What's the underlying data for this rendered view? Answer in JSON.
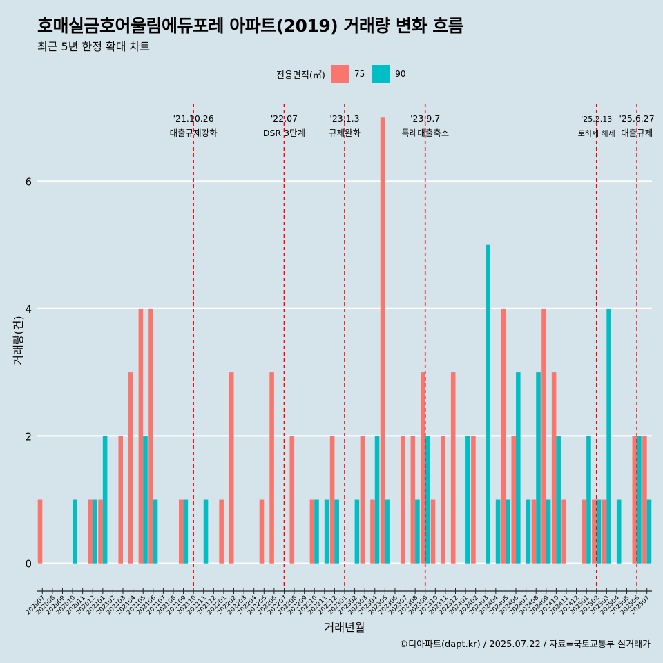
{
  "title": "호매실금호어울림에듀포레 아파트(2019) 거래량 변화 흐름",
  "subtitle": "최근 5년 한정 확대 차트",
  "caption": "©디아파트(dapt.kr) / 2025.07.22 / 자료=국토교통부 실거래가",
  "legend": {
    "title": "전용면적(㎡)",
    "items": [
      {
        "label": "75",
        "color": "#F8766D"
      },
      {
        "label": "90",
        "color": "#00BFC4"
      }
    ]
  },
  "chart_data": {
    "type": "bar",
    "title": "호매실금호어울림에듀포레 아파트(2019) 거래량 변화 흐름",
    "xlabel": "거래년월",
    "ylabel": "거래량(건)",
    "ylim": [
      -0.35,
      7.35
    ],
    "yticks": [
      0,
      2,
      4,
      6
    ],
    "categories": [
      "202007",
      "202008",
      "202009",
      "202010",
      "202011",
      "202012",
      "202101",
      "202102",
      "202103",
      "202104",
      "202105",
      "202106",
      "202107",
      "202108",
      "202109",
      "202110",
      "202111",
      "202112",
      "202201",
      "202202",
      "202203",
      "202204",
      "202205",
      "202206",
      "202207",
      "202208",
      "202209",
      "202210",
      "202211",
      "202212",
      "202301",
      "202302",
      "202303",
      "202304",
      "202305",
      "202306",
      "202307",
      "202308",
      "202309",
      "202310",
      "202311",
      "202312",
      "202401",
      "202402",
      "202403",
      "202404",
      "202405",
      "202406",
      "202407",
      "202408",
      "202409",
      "202410",
      "202411",
      "202412",
      "202501",
      "202502",
      "202503",
      "202504",
      "202505",
      "202506",
      "202507"
    ],
    "series": [
      {
        "name": "75",
        "color": "#F8766D",
        "values": [
          1,
          0,
          0,
          0,
          0,
          1,
          1,
          0,
          2,
          3,
          4,
          4,
          0,
          0,
          1,
          0,
          0,
          0,
          1,
          3,
          0,
          0,
          1,
          3,
          0,
          2,
          0,
          1,
          0,
          2,
          0,
          0,
          2,
          1,
          7,
          0,
          2,
          2,
          3,
          1,
          2,
          3,
          0,
          2,
          0,
          0,
          4,
          2,
          0,
          1,
          4,
          3,
          1,
          0,
          1,
          1,
          1,
          0,
          0,
          2,
          2
        ]
      },
      {
        "name": "90",
        "color": "#00BFC4",
        "values": [
          0,
          0,
          0,
          1,
          0,
          1,
          2,
          0,
          0,
          0,
          2,
          1,
          0,
          0,
          1,
          0,
          1,
          0,
          0,
          0,
          0,
          0,
          0,
          0,
          0,
          0,
          0,
          1,
          1,
          1,
          0,
          1,
          0,
          2,
          1,
          0,
          0,
          1,
          2,
          0,
          0,
          0,
          2,
          0,
          5,
          1,
          1,
          3,
          1,
          3,
          1,
          2,
          0,
          0,
          2,
          1,
          4,
          1,
          0,
          2,
          1
        ]
      }
    ],
    "events": [
      {
        "date": "'21.10.26",
        "label": "대출규제강화",
        "month": "202110"
      },
      {
        "date": "'22.07",
        "label": "DSR 3단계",
        "month": "202207"
      },
      {
        "date": "'23.1.3",
        "label": "규제완화",
        "month": "202301"
      },
      {
        "date": "'23.9.7",
        "label": "특례대출축소",
        "month": "202309"
      },
      {
        "date": "'25.2.13",
        "label": "토허제 해제",
        "month": "202502"
      },
      {
        "date": "'25.6.27",
        "label": "대출규제",
        "month": "202506"
      }
    ]
  }
}
